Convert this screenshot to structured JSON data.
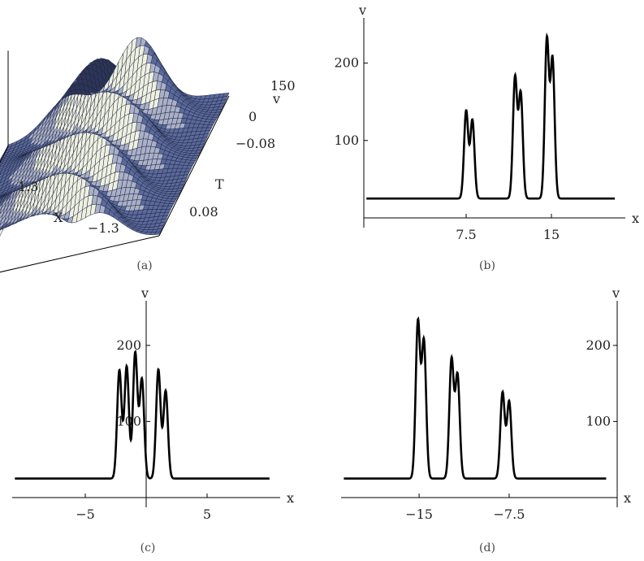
{
  "captions": [
    "(a)",
    "(b)",
    "(c)",
    "(d)"
  ],
  "colors": {
    "curve": "#000000",
    "axis": "#000000",
    "surface_face": "#5b6a9c",
    "surface_grid": "#1e2540",
    "surface_highlight": "#eef0e0"
  },
  "chart_data": [
    {
      "panel": "a",
      "type": "surface",
      "axis_labels": {
        "X": "X",
        "T": "T",
        "v": "v"
      },
      "x_ticks": [
        "1.3",
        "−1.3"
      ],
      "t_ticks": [
        "−0.08",
        "0.08"
      ],
      "v_ticks": [
        "150",
        "0"
      ],
      "grid": true
    },
    {
      "panel": "b",
      "type": "line",
      "xlabel": "x",
      "ylabel": "v",
      "xlim": [
        -1.5,
        21.5
      ],
      "ylim": [
        -30,
        250
      ],
      "x_axis_at": 0,
      "y_axis_at": -1.5,
      "xticks": [
        {
          "value": 7.5,
          "label": "7.5"
        },
        {
          "value": 15,
          "label": "15"
        }
      ],
      "yticks": [
        {
          "value": 100,
          "label": "100"
        },
        {
          "value": 200,
          "label": "200"
        }
      ],
      "baseline": 25,
      "peaks": [
        {
          "x": 7.5,
          "y": 138
        },
        {
          "x": 8.05,
          "y": 126
        },
        {
          "x": 11.8,
          "y": 181
        },
        {
          "x": 12.3,
          "y": 160
        },
        {
          "x": 14.6,
          "y": 230
        },
        {
          "x": 15.1,
          "y": 204
        }
      ]
    },
    {
      "panel": "c",
      "type": "line",
      "xlabel": "x",
      "ylabel": "v",
      "xlim": [
        -11,
        11
      ],
      "ylim": [
        -30,
        250
      ],
      "x_axis_at": 0,
      "y_axis_at": 0,
      "xticks": [
        {
          "value": -5,
          "label": "−5"
        },
        {
          "value": 5,
          "label": "5"
        }
      ],
      "yticks": [
        {
          "value": 100,
          "label": "100"
        },
        {
          "value": 200,
          "label": "200"
        }
      ],
      "baseline": 25,
      "peaks": [
        {
          "x": -2.2,
          "y": 167
        },
        {
          "x": -1.6,
          "y": 172
        },
        {
          "x": -0.9,
          "y": 190
        },
        {
          "x": -0.35,
          "y": 155
        },
        {
          "x": 1.0,
          "y": 168
        },
        {
          "x": 1.6,
          "y": 140
        }
      ]
    },
    {
      "panel": "d",
      "type": "line",
      "xlabel": "x",
      "ylabel": "v",
      "xlim": [
        -21.5,
        1.5
      ],
      "ylim": [
        -30,
        250
      ],
      "x_axis_at": 0,
      "y_axis_at": 1.5,
      "xticks": [
        {
          "value": -15,
          "label": "−15"
        },
        {
          "value": -7.5,
          "label": "−7.5"
        }
      ],
      "yticks": [
        {
          "value": 100,
          "label": "100"
        },
        {
          "value": 200,
          "label": "200"
        }
      ],
      "baseline": 25,
      "peaks": [
        {
          "x": -15.1,
          "y": 230
        },
        {
          "x": -14.6,
          "y": 204
        },
        {
          "x": -12.3,
          "y": 181
        },
        {
          "x": -11.8,
          "y": 160
        },
        {
          "x": -8.05,
          "y": 138
        },
        {
          "x": -7.5,
          "y": 126
        }
      ]
    }
  ]
}
